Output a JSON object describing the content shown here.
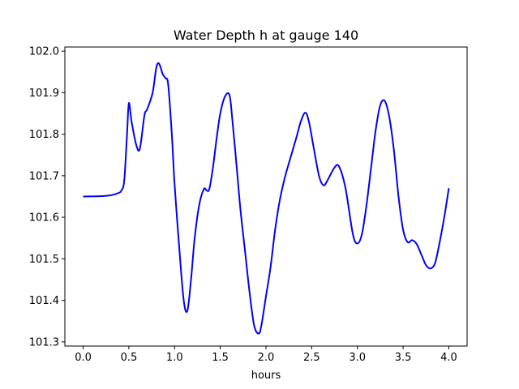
{
  "chart_data": {
    "type": "line",
    "title": "Water Depth h at gauge 140",
    "xlabel": "hours",
    "ylabel": "",
    "xlim": [
      -0.2,
      4.2
    ],
    "ylim": [
      101.29,
      102.01
    ],
    "xticks": [
      0.0,
      0.5,
      1.0,
      1.5,
      2.0,
      2.5,
      3.0,
      3.5,
      4.0
    ],
    "xtick_labels": [
      "0.0",
      "0.5",
      "1.0",
      "1.5",
      "2.0",
      "2.5",
      "3.0",
      "3.5",
      "4.0"
    ],
    "yticks": [
      101.3,
      101.4,
      101.5,
      101.6,
      101.7,
      101.8,
      101.9,
      102.0
    ],
    "ytick_labels": [
      "101.3",
      "101.4",
      "101.5",
      "101.6",
      "101.7",
      "101.8",
      "101.9",
      "102.0"
    ],
    "grid": false,
    "legend": "none",
    "series": [
      {
        "color": "#0000ff",
        "x": [
          0.0,
          0.2,
          0.3,
          0.38,
          0.42,
          0.45,
          0.48,
          0.5,
          0.53,
          0.58,
          0.62,
          0.67,
          0.7,
          0.76,
          0.8,
          0.83,
          0.87,
          0.9,
          0.93,
          0.97,
          1.0,
          1.05,
          1.1,
          1.14,
          1.18,
          1.22,
          1.27,
          1.32,
          1.35,
          1.38,
          1.42,
          1.46,
          1.5,
          1.55,
          1.6,
          1.63,
          1.68,
          1.72,
          1.77,
          1.82,
          1.87,
          1.92,
          1.95,
          2.0,
          2.05,
          2.1,
          2.15,
          2.2,
          2.25,
          2.33,
          2.38,
          2.43,
          2.47,
          2.52,
          2.58,
          2.63,
          2.68,
          2.75,
          2.8,
          2.87,
          2.95,
          3.0,
          3.05,
          3.1,
          3.15,
          3.2,
          3.25,
          3.3,
          3.35,
          3.4,
          3.45,
          3.5,
          3.55,
          3.6,
          3.65,
          3.7,
          3.75,
          3.8,
          3.85,
          3.9,
          3.95,
          4.0
        ],
        "y": [
          101.65,
          101.651,
          101.653,
          101.658,
          101.665,
          101.69,
          101.8,
          101.875,
          101.83,
          101.775,
          101.765,
          101.845,
          101.86,
          101.9,
          101.96,
          101.97,
          101.945,
          101.935,
          101.92,
          101.8,
          101.68,
          101.53,
          101.4,
          101.375,
          101.45,
          101.55,
          101.63,
          101.668,
          101.665,
          101.668,
          101.72,
          101.79,
          101.85,
          101.89,
          101.895,
          101.84,
          101.72,
          101.62,
          101.52,
          101.42,
          101.34,
          101.32,
          101.34,
          101.41,
          101.48,
          101.57,
          101.64,
          101.69,
          101.73,
          101.79,
          101.83,
          101.852,
          101.83,
          101.77,
          101.7,
          101.677,
          101.692,
          101.72,
          101.722,
          101.67,
          101.56,
          101.537,
          101.56,
          101.63,
          101.72,
          101.81,
          101.87,
          101.88,
          101.84,
          101.76,
          101.65,
          101.57,
          101.54,
          101.545,
          101.535,
          101.51,
          101.485,
          101.477,
          101.49,
          101.54,
          101.6,
          101.67
        ]
      }
    ]
  }
}
